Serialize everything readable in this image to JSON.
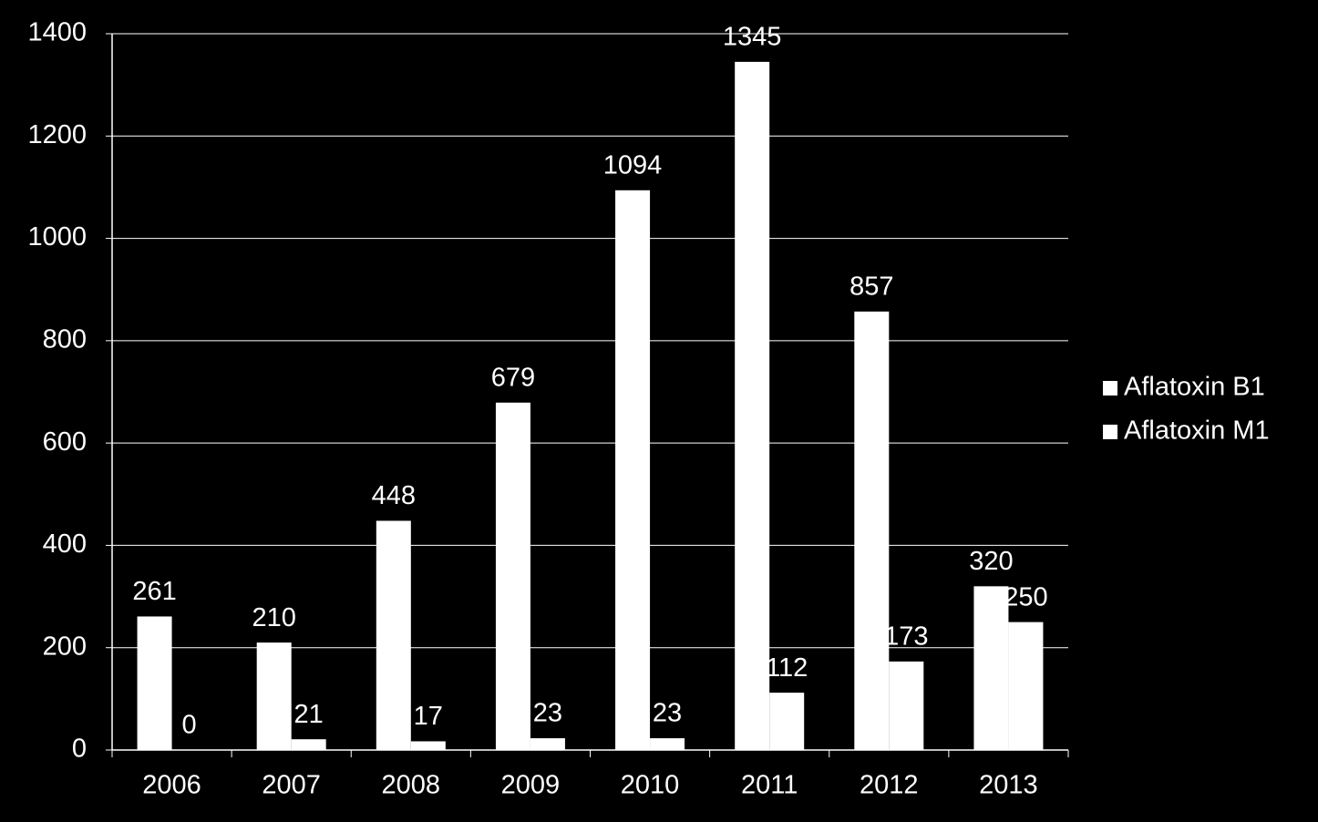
{
  "chart_data": {
    "type": "bar",
    "categories": [
      "2006",
      "2007",
      "2008",
      "2009",
      "2010",
      "2011",
      "2012",
      "2013"
    ],
    "series": [
      {
        "name": "Aflatoxin B1",
        "color": "#ffffff",
        "values": [
          261,
          210,
          448,
          679,
          1094,
          1345,
          857,
          320
        ]
      },
      {
        "name": "Aflatoxin M1",
        "color": "#ffffff",
        "values": [
          0,
          21,
          17,
          23,
          23,
          112,
          173,
          250
        ]
      }
    ],
    "ylim": [
      0,
      1400
    ],
    "yticks": [
      0,
      200,
      400,
      600,
      800,
      1000,
      1200,
      1400
    ],
    "grid": true,
    "legend": "right",
    "data_labels": true
  }
}
